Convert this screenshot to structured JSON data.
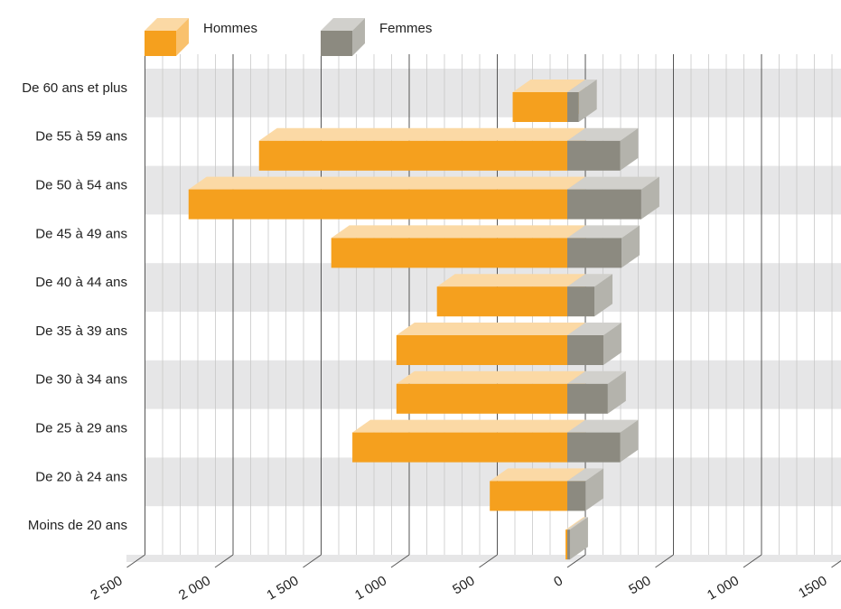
{
  "chart_data": {
    "type": "pyramid",
    "categories": [
      "De 60 ans et plus",
      "De 55 à 59 ans",
      "De 50 à 54 ans",
      "De 45 à 49 ans",
      "De 40 à 44 ans",
      "De 35 à 39 ans",
      "De 30 à 34 ans",
      "De 25 à 29 ans",
      "De 20 à 24 ans",
      "Moins de 20 ans"
    ],
    "series": [
      {
        "name": "Hommes",
        "color": "#f5a01e",
        "side": "left",
        "values": [
          310,
          1750,
          2150,
          1340,
          740,
          970,
          970,
          1220,
          440,
          10
        ]
      },
      {
        "name": "Femmes",
        "color": "#8c8a80",
        "side": "right",
        "values": [
          65,
          300,
          420,
          308,
          154,
          205,
          230,
          300,
          103,
          15
        ]
      }
    ],
    "xlim": [
      -2500,
      1500
    ],
    "xticks": [
      {
        "value": -2500,
        "label": "2 500"
      },
      {
        "value": -2000,
        "label": "2 000"
      },
      {
        "value": -1500,
        "label": "1 500"
      },
      {
        "value": -1000,
        "label": "1 000"
      },
      {
        "value": -500,
        "label": "500"
      },
      0,
      {
        "value": 500,
        "label": "500"
      },
      {
        "value": 1000,
        "label": "1 000"
      },
      1500
    ],
    "grid": true
  }
}
